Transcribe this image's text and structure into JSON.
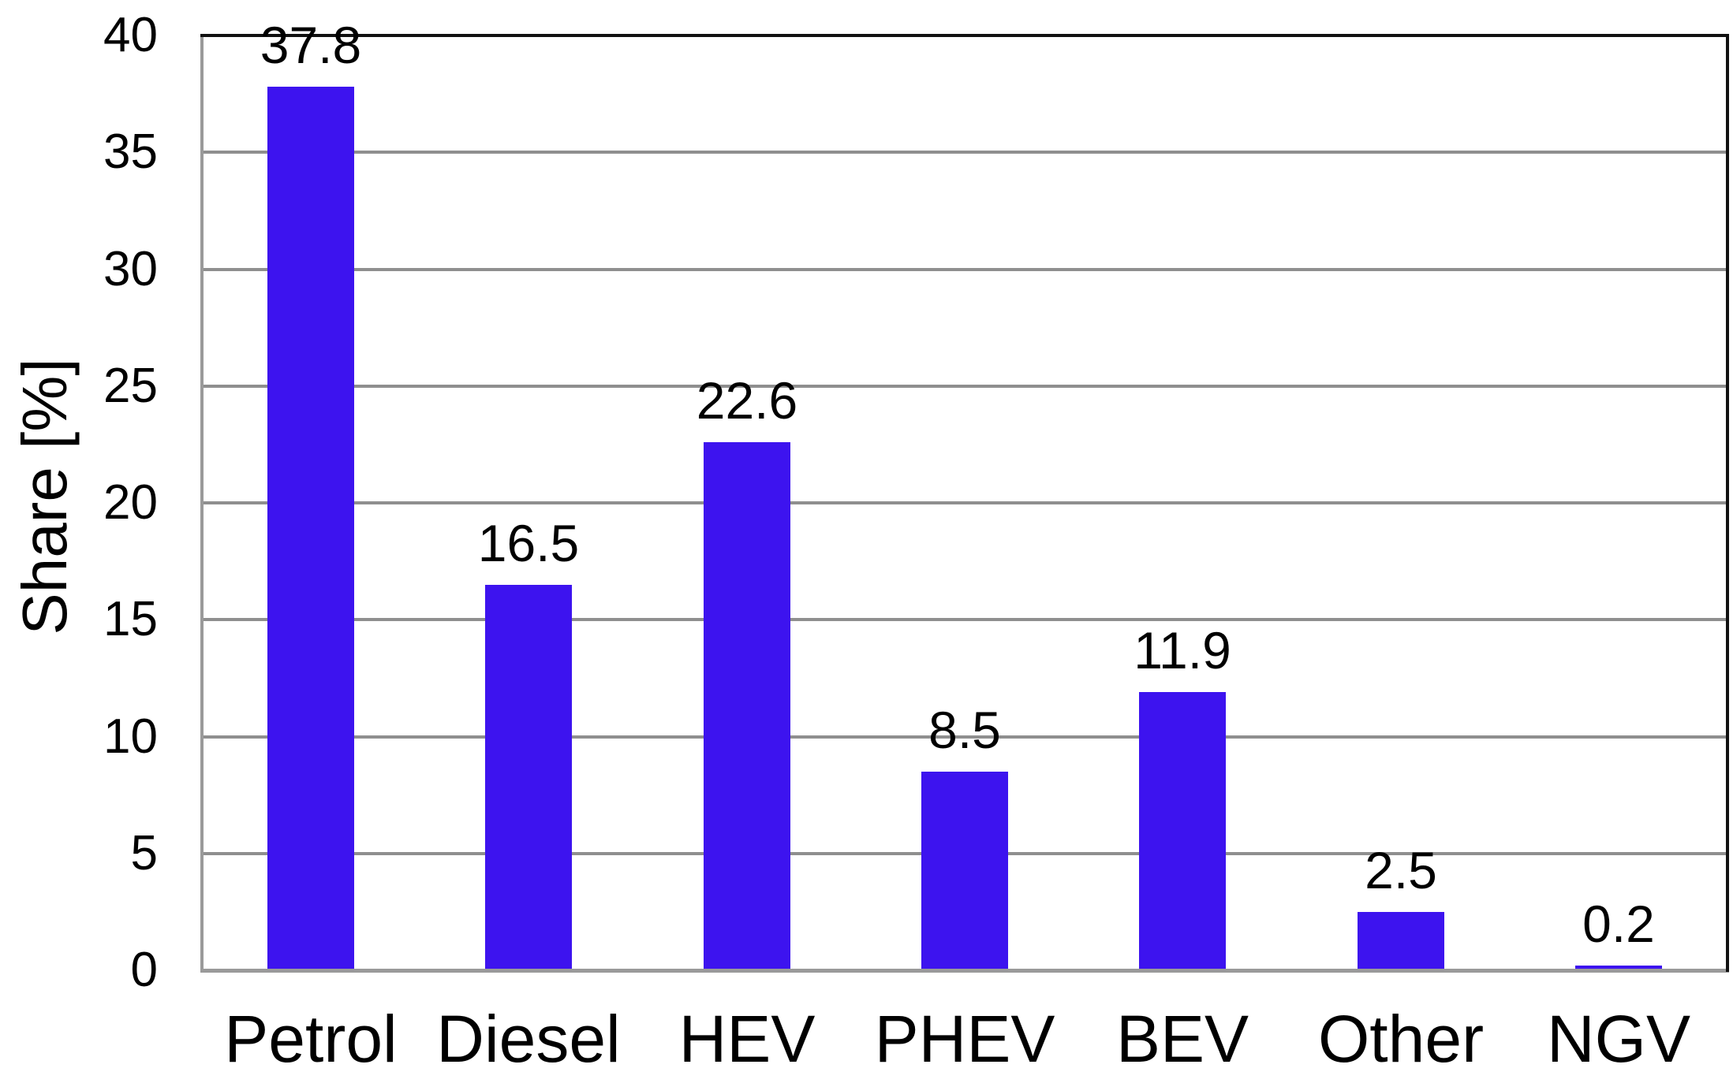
{
  "chart_data": {
    "type": "bar",
    "title": "",
    "xlabel": "",
    "ylabel": "Share [%]",
    "categories": [
      "Petrol",
      "Diesel",
      "HEV",
      "PHEV",
      "BEV",
      "Other",
      "NGV"
    ],
    "values": [
      37.8,
      16.5,
      22.6,
      8.5,
      11.9,
      2.5,
      0.2
    ],
    "value_labels": [
      "37.8",
      "16.5",
      "22.6",
      "8.5",
      "11.9",
      "2.5",
      "0.2"
    ],
    "ylim": [
      0,
      40
    ],
    "yticks": [
      0,
      5,
      10,
      15,
      20,
      25,
      30,
      35,
      40
    ],
    "ytick_labels": [
      "0",
      "5",
      "10",
      "15",
      "20",
      "25",
      "30",
      "35",
      "40"
    ],
    "grid": "horizontal-major",
    "legend": "none",
    "colors": {
      "bar": "#3D13EF",
      "gridline": "#8f8f8f",
      "axis_left_bottom": "#9a9a9a",
      "frame_top_right": "#111111",
      "text": "#000000",
      "background": "#ffffff"
    }
  }
}
